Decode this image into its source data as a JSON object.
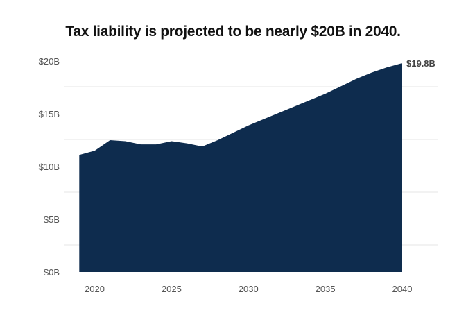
{
  "chart_data": {
    "type": "area",
    "title": "Tax liability is projected to be nearly $20B in 2040.",
    "xlabel": "",
    "ylabel": "",
    "x": [
      2019,
      2020,
      2021,
      2022,
      2023,
      2024,
      2025,
      2026,
      2027,
      2028,
      2029,
      2030,
      2031,
      2032,
      2033,
      2034,
      2035,
      2036,
      2037,
      2038,
      2039,
      2040
    ],
    "series": [
      {
        "values": [
          11.1,
          11.5,
          12.5,
          12.4,
          12.1,
          12.1,
          12.4,
          12.2,
          11.9,
          12.5,
          13.2,
          13.9,
          14.5,
          15.1,
          15.7,
          16.3,
          16.9,
          17.6,
          18.3,
          18.9,
          19.4,
          19.8
        ]
      }
    ],
    "xlim": [
      2018,
      2042
    ],
    "ylim": [
      0,
      20
    ],
    "xticks": [
      "2020",
      "2025",
      "2030",
      "2035",
      "2040"
    ],
    "xtick_values": [
      2020,
      2025,
      2030,
      2035,
      2040
    ],
    "yticks": [
      "$0B",
      "$5B",
      "$10B",
      "$15B",
      "$20B"
    ],
    "ytick_values": [
      0,
      5,
      10,
      15,
      20
    ],
    "grid": true,
    "end_label": "$19.8B",
    "fill_color": "#0e2c4e",
    "grid_color": "#e5e5e5"
  }
}
